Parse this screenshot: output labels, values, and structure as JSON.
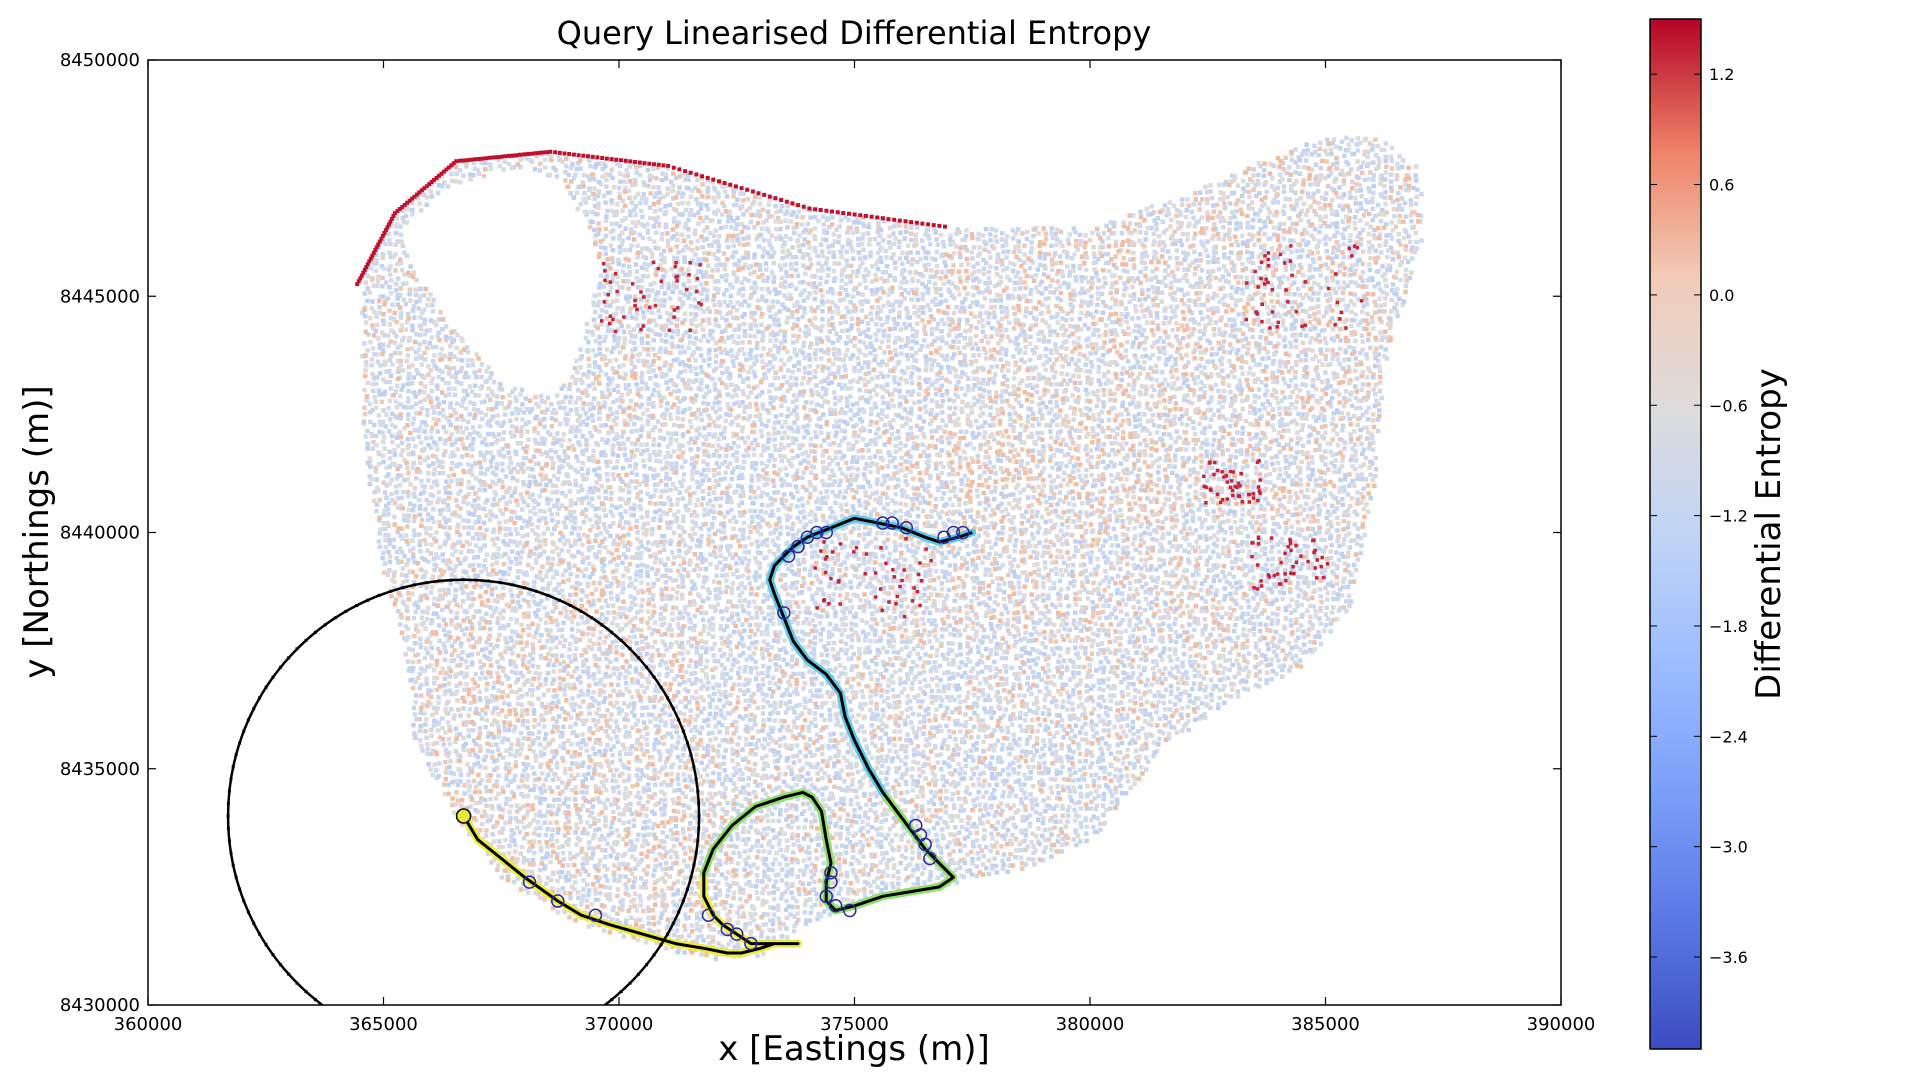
{
  "chart_data": {
    "type": "scatter",
    "title": "Query Linearised Differential Entropy",
    "xlabel": "x [Eastings (m)]",
    "ylabel": "y [Northings (m)]",
    "xlim": [
      360000,
      390000
    ],
    "ylim": [
      8430000,
      8450000
    ],
    "xticks": [
      360000,
      365000,
      370000,
      375000,
      380000,
      385000,
      390000
    ],
    "yticks": [
      8430000,
      8435000,
      8440000,
      8445000,
      8450000
    ],
    "colorbar": {
      "label": "Differential Entropy",
      "colormap": "coolwarm",
      "range": [
        -4.1,
        1.5
      ],
      "ticks": [
        1.2,
        0.6,
        0.0,
        -0.6,
        -1.2,
        -1.8,
        -2.4,
        -3.0,
        -3.6
      ],
      "tick_labels": [
        "1.2",
        "0.6",
        "0.0",
        "−0.6",
        "−1.2",
        "−1.8",
        "−2.4",
        "−3.0",
        "−3.6"
      ]
    },
    "region_outline": {
      "x": [
        364400,
        365200,
        366500,
        368500,
        371000,
        374000,
        377000,
        380000,
        382500,
        384500,
        386000,
        387000,
        387000,
        386200,
        386000,
        385500,
        384500,
        383000,
        381500,
        380000,
        378500,
        377000,
        375500,
        374000,
        373000,
        372000,
        371000,
        369000,
        367500,
        366500,
        365600,
        365400,
        364800,
        364500,
        364500
      ],
      "y": [
        8445300,
        8446800,
        8447900,
        8448100,
        8447800,
        8446900,
        8446500,
        8446500,
        8447400,
        8448300,
        8448500,
        8447700,
        8446200,
        8443500,
        8441000,
        8438500,
        8437200,
        8436500,
        8435500,
        8433500,
        8432900,
        8432600,
        8432300,
        8431800,
        8431100,
        8431000,
        8431200,
        8431800,
        8432700,
        8434000,
        8435600,
        8437600,
        8439800,
        8442500,
        8445300
      ]
    },
    "lake_hole": {
      "x": [
        365300,
        366300,
        367800,
        368800,
        369600,
        369000,
        368500,
        367500,
        366500,
        365600,
        365300
      ],
      "y": [
        8446300,
        8447300,
        8447800,
        8447500,
        8445700,
        8443500,
        8442900,
        8443200,
        8444300,
        8445600,
        8446300
      ]
    },
    "query_path": {
      "x": [
        366700,
        367000,
        367500,
        368000,
        368700,
        369200,
        369800,
        370500,
        371200,
        371800,
        372300,
        372600,
        373000,
        373300,
        373600,
        373800,
        373400,
        372800,
        372500,
        372200,
        372000,
        371800,
        371800,
        372000,
        372400,
        372900,
        373500,
        373900,
        374100,
        374300,
        374400,
        374500,
        374400,
        374400,
        374600,
        375000,
        375600,
        376200,
        376800,
        377100,
        376800,
        376500,
        376200,
        375900,
        375600,
        375300,
        375000,
        374800,
        374700,
        374400,
        374000,
        373700,
        373500,
        373300,
        373200,
        373300,
        373500,
        373700,
        374000,
        374500,
        375000,
        375500,
        376000,
        376500,
        376800,
        377200,
        377500
      ],
      "y": [
        8434000,
        8433500,
        8433100,
        8432700,
        8432200,
        8431900,
        8431700,
        8431500,
        8431300,
        8431200,
        8431100,
        8431100,
        8431200,
        8431300,
        8431300,
        8431300,
        8431300,
        8431300,
        8431500,
        8431700,
        8431900,
        8432300,
        8432800,
        8433300,
        8433800,
        8434200,
        8434400,
        8434500,
        8434400,
        8434100,
        8433500,
        8433000,
        8432600,
        8432200,
        8432000,
        8432100,
        8432300,
        8432400,
        8432500,
        8432700,
        8433000,
        8433300,
        8433700,
        8434100,
        8434500,
        8435000,
        8435600,
        8436100,
        8436600,
        8437000,
        8437300,
        8437700,
        8438200,
        8438700,
        8439000,
        8439300,
        8439500,
        8439700,
        8439900,
        8440100,
        8440300,
        8440200,
        8440100,
        8439900,
        8439800,
        8439900,
        8440000
      ]
    },
    "query_markers": {
      "x": [
        366700,
        368100,
        368700,
        369500,
        371900,
        372300,
        372500,
        372800,
        374400,
        374500,
        374500,
        374600,
        374900,
        376300,
        376400,
        376500,
        376600,
        373500,
        373600,
        373800,
        374000,
        374200,
        374400,
        375600,
        375800,
        376100,
        376900,
        377100,
        377300
      ],
      "y": [
        8434000,
        8432600,
        8432200,
        8431900,
        8431900,
        8431600,
        8431500,
        8431300,
        8432300,
        8432600,
        8432800,
        8432100,
        8432000,
        8433800,
        8433600,
        8433400,
        8433100,
        8438300,
        8439500,
        8439700,
        8439900,
        8440000,
        8440000,
        8440200,
        8440200,
        8440100,
        8439900,
        8440000,
        8440000
      ]
    },
    "sensor_range_circle": {
      "center": [
        366700,
        8434000
      ],
      "radius_m": 5000
    }
  }
}
